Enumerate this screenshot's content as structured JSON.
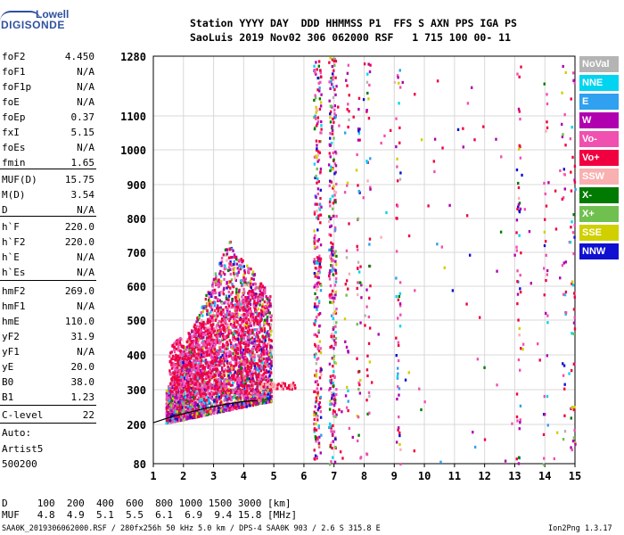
{
  "logo": {
    "line1": "Lowell",
    "line2": "DIGISONDE"
  },
  "header": {
    "line1": "Station YYYY DAY  DDD HHMMSS P1  FFS S AXN PPS IGA PS",
    "line2": "SaoLuis 2019 Nov02 306 062000 RSF   1 715 100 00- 11"
  },
  "params": [
    {
      "name": "foF2",
      "value": "4.450"
    },
    {
      "name": "foF1",
      "value": "N/A"
    },
    {
      "name": "foF1p",
      "value": "N/A"
    },
    {
      "name": "foE",
      "value": "N/A"
    },
    {
      "name": "foEp",
      "value": "0.37"
    },
    {
      "name": "fxI",
      "value": "5.15"
    },
    {
      "name": "foEs",
      "value": "N/A"
    },
    {
      "name": "fmin",
      "value": "1.65"
    },
    {
      "name": "MUF(D)",
      "value": "15.75"
    },
    {
      "name": "M(D)",
      "value": "3.54"
    },
    {
      "name": "D",
      "value": "N/A"
    },
    {
      "name": "h`F",
      "value": "220.0"
    },
    {
      "name": "h`F2",
      "value": "220.0"
    },
    {
      "name": "h`E",
      "value": "N/A"
    },
    {
      "name": "h`Es",
      "value": "N/A"
    },
    {
      "name": "hmF2",
      "value": "269.0"
    },
    {
      "name": "hmF1",
      "value": "N/A"
    },
    {
      "name": "hmE",
      "value": "110.0"
    },
    {
      "name": "yF2",
      "value": "31.9"
    },
    {
      "name": "yF1",
      "value": "N/A"
    },
    {
      "name": "yE",
      "value": "20.0"
    },
    {
      "name": "B0",
      "value": "38.0"
    },
    {
      "name": "B1",
      "value": "1.23"
    },
    {
      "name": "C-level",
      "value": "22"
    }
  ],
  "auto": {
    "line1": "Auto:",
    "line2": "Artist5",
    "line3": "500200"
  },
  "legend": [
    {
      "label": "NoVal",
      "color": "#b4b4b4",
      "text_color": "#ffffff"
    },
    {
      "label": "NNE",
      "color": "#00d4f0",
      "text_color": "#ffffff"
    },
    {
      "label": "E",
      "color": "#30a0f0",
      "text_color": "#ffffff"
    },
    {
      "label": "W",
      "color": "#b000b0",
      "text_color": "#ffffff"
    },
    {
      "label": "Vo-",
      "color": "#f050b0",
      "text_color": "#ffffff"
    },
    {
      "label": "Vo+",
      "color": "#f00040",
      "text_color": "#ffffff"
    },
    {
      "label": "SSW",
      "color": "#f8b0b0",
      "text_color": "#ffffff"
    },
    {
      "label": "X-",
      "color": "#007a00",
      "text_color": "#ffffff"
    },
    {
      "label": "X+",
      "color": "#70c050",
      "text_color": "#ffffff"
    },
    {
      "label": "SSE",
      "color": "#d0d000",
      "text_color": "#ffffff"
    },
    {
      "label": "NNW",
      "color": "#1010d0",
      "text_color": "#ffffff"
    }
  ],
  "muf_table": {
    "d_label": "D",
    "d_values": [
      "100",
      "200",
      "400",
      "600",
      "800",
      "1000",
      "1500",
      "3000"
    ],
    "d_unit": "[km]",
    "muf_label": "MUF",
    "muf_values": [
      "4.8",
      "4.9",
      "5.1",
      "5.5",
      "6.1",
      "6.9",
      "9.4",
      "15.8"
    ],
    "muf_unit": "[MHz]"
  },
  "footer": {
    "left": "SAA0K_2019306062000.RSF / 280fx256h 50 kHz 5.0 km / DPS-4 SAA0K 903 / 2.6 S 315.8 E",
    "right": "Ion2Png 1.3.17"
  },
  "chart_data": {
    "type": "scatter",
    "title": "",
    "xlabel": "",
    "ylabel": "",
    "xlim": [
      1,
      15
    ],
    "ylim": [
      80,
      1280
    ],
    "x_ticks": [
      1,
      2,
      3,
      4,
      5,
      6,
      7,
      8,
      9,
      10,
      11,
      12,
      13,
      14,
      15
    ],
    "y_ticks": [
      80,
      200,
      300,
      400,
      500,
      600,
      700,
      800,
      900,
      1000,
      1100,
      1280
    ],
    "grid": true,
    "legend_position": "right",
    "y_scale": "frequency-dependent (nonlinear)",
    "regions": [
      {
        "name": "F-layer trace cloud",
        "xmin": 1.4,
        "xmax": 4.9,
        "ymin": 240,
        "ymax": 760
      },
      {
        "name": "vertical interference band",
        "xmin": 6.2,
        "xmax": 7.0,
        "ymin": 80,
        "ymax": 1280
      },
      {
        "name": "scattered interference",
        "xmin": 8.0,
        "xmax": 15.0,
        "ymin": 80,
        "ymax": 1280
      }
    ],
    "profile_curve": {
      "x": [
        1.0,
        1.6,
        2.2,
        2.8,
        3.4,
        4.0,
        4.45
      ],
      "y": [
        205,
        222,
        235,
        248,
        258,
        266,
        269
      ]
    }
  }
}
